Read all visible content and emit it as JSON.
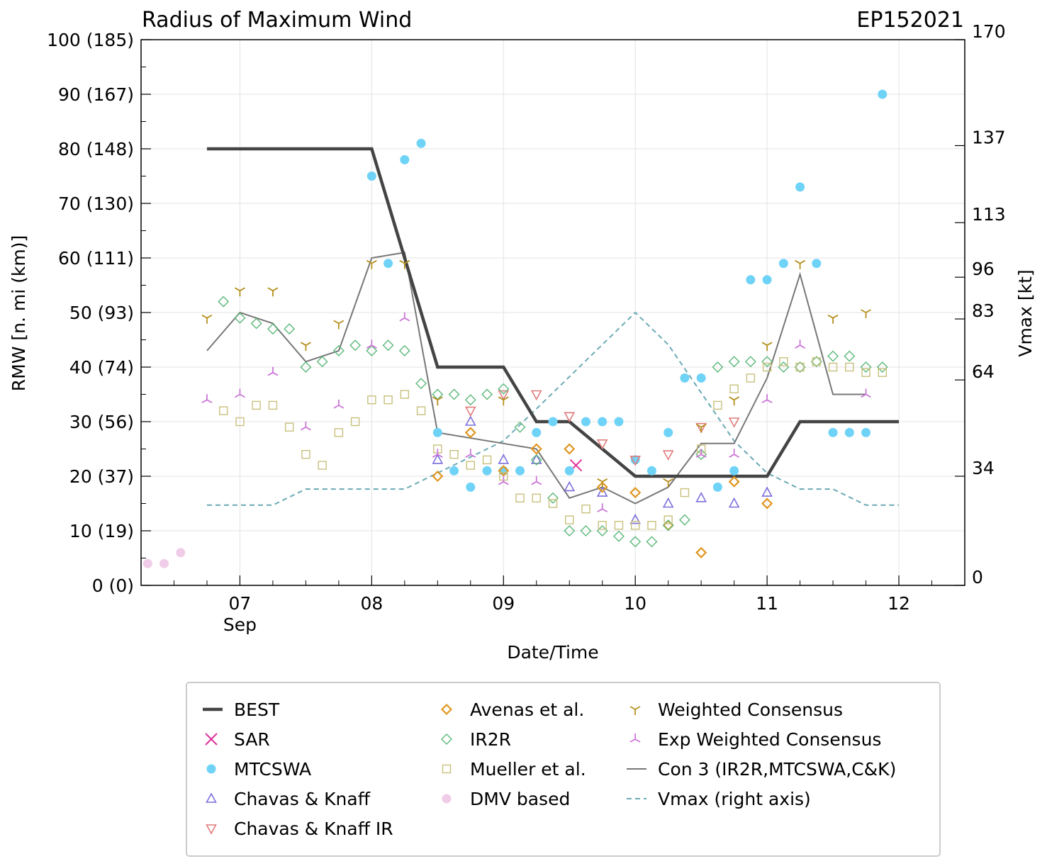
{
  "chart_data": {
    "type": "scatter",
    "title": "Radius of Maximum Wind",
    "storm_id": "EP152021",
    "xlabel": "Date/Time",
    "ylabel": "RMW [n. mi (km)]",
    "ylabel_right": "Vmax [kt]",
    "xlim": [
      6.25,
      12.5
    ],
    "ylim": [
      0,
      100
    ],
    "ylim_right": [
      0,
      170
    ],
    "x_ticks": [
      {
        "value": 7,
        "label": "07",
        "sublabel": "Sep"
      },
      {
        "value": 8,
        "label": "08",
        "sublabel": ""
      },
      {
        "value": 9,
        "label": "09",
        "sublabel": ""
      },
      {
        "value": 10,
        "label": "10",
        "sublabel": ""
      },
      {
        "value": 11,
        "label": "11",
        "sublabel": ""
      },
      {
        "value": 12,
        "label": "12",
        "sublabel": ""
      }
    ],
    "y_ticks": [
      {
        "value": 0,
        "label": "0 (0)"
      },
      {
        "value": 10,
        "label": "10 (19)"
      },
      {
        "value": 20,
        "label": "20 (37)"
      },
      {
        "value": 30,
        "label": "30 (56)"
      },
      {
        "value": 40,
        "label": "40 (74)"
      },
      {
        "value": 50,
        "label": "50 (93)"
      },
      {
        "value": 60,
        "label": "60 (111)"
      },
      {
        "value": 70,
        "label": "70 (130)"
      },
      {
        "value": 80,
        "label": "80 (148)"
      },
      {
        "value": 90,
        "label": "90 (167)"
      },
      {
        "value": 100,
        "label": "100 (185)"
      }
    ],
    "y_right_ticks": [
      {
        "value": 0,
        "label": "0"
      },
      {
        "value": 34,
        "label": "34"
      },
      {
        "value": 64,
        "label": "64"
      },
      {
        "value": 83,
        "label": "83"
      },
      {
        "value": 96,
        "label": "96"
      },
      {
        "value": 113,
        "label": "113"
      },
      {
        "value": 137,
        "label": "137"
      },
      {
        "value": 170,
        "label": "170"
      }
    ],
    "legend_placement": "below plot",
    "series": [
      {
        "name": "BEST",
        "kind": "line",
        "color": "#444444",
        "x": [
          6.75,
          8.0,
          8.5,
          9.0,
          9.25,
          9.5,
          10.0,
          11.0,
          11.25,
          12.0
        ],
        "y": [
          80,
          80,
          40,
          40,
          30,
          30,
          20,
          20,
          30,
          30
        ]
      },
      {
        "name": "SAR",
        "kind": "x",
        "color": "#e0309a",
        "x": [
          9.55
        ],
        "y": [
          22
        ]
      },
      {
        "name": "MTCSWA",
        "kind": "circle",
        "color": "#6fd3f7",
        "x": [
          8.0,
          8.125,
          8.25,
          8.375,
          8.5,
          8.625,
          8.75,
          8.875,
          9.0,
          9.125,
          9.25,
          9.375,
          9.5,
          9.625,
          9.75,
          9.875,
          10.0,
          10.125,
          10.25,
          10.375,
          10.5,
          10.625,
          10.75,
          10.875,
          11.0,
          11.125,
          11.25,
          11.375,
          11.5,
          11.625,
          11.75,
          11.875
        ],
        "y": [
          75,
          59,
          78,
          81,
          28,
          21,
          18,
          21,
          21,
          21,
          28,
          30,
          21,
          30,
          30,
          30,
          23,
          21,
          28,
          38,
          38,
          18,
          21,
          56,
          56,
          59,
          73,
          59,
          28,
          28,
          28,
          90
        ]
      },
      {
        "name": "Chavas & Knaff",
        "kind": "triangle-up",
        "color": "#7b6fdc",
        "x": [
          8.5,
          8.75,
          9.0,
          9.25,
          9.5,
          9.75,
          10.0,
          10.25,
          10.5,
          10.75,
          11.0
        ],
        "y": [
          23,
          30,
          23,
          23,
          18,
          17,
          12,
          15,
          16,
          15,
          17
        ]
      },
      {
        "name": "Chavas & Knaff IR",
        "kind": "triangle-down",
        "color": "#e07b7b",
        "x": [
          8.75,
          9.0,
          9.25,
          9.5,
          9.75,
          10.0,
          10.25,
          10.5,
          10.75
        ],
        "y": [
          32,
          35,
          35,
          31,
          26,
          23,
          24,
          29,
          30
        ]
      },
      {
        "name": "Avenas et al.",
        "kind": "diamond",
        "color": "#e0961f",
        "x": [
          8.5,
          8.75,
          9.0,
          9.25,
          9.5,
          9.75,
          10.0,
          10.25,
          10.5,
          10.75,
          11.0
        ],
        "y": [
          20,
          28,
          21,
          25,
          25,
          18,
          17,
          11,
          6,
          19,
          15
        ]
      },
      {
        "name": "IR2R",
        "kind": "diamond-open",
        "color": "#5db87a",
        "x": [
          6.875,
          7.0,
          7.125,
          7.25,
          7.375,
          7.5,
          7.625,
          7.75,
          7.875,
          8.0,
          8.125,
          8.25,
          8.375,
          8.5,
          8.625,
          8.75,
          8.875,
          9.0,
          9.125,
          9.25,
          9.375,
          9.5,
          9.625,
          9.75,
          9.875,
          10.0,
          10.125,
          10.25,
          10.375,
          10.5,
          10.625,
          10.75,
          10.875,
          11.0,
          11.125,
          11.25,
          11.375,
          11.5,
          11.625,
          11.75,
          11.875
        ],
        "y": [
          52,
          49,
          48,
          47,
          47,
          40,
          41,
          43,
          44,
          43,
          44,
          43,
          37,
          35,
          35,
          34,
          35,
          36,
          29,
          23,
          16,
          10,
          10,
          10,
          9,
          8,
          8,
          11,
          12,
          24,
          40,
          41,
          41,
          41,
          40,
          40,
          41,
          42,
          42,
          40,
          40
        ]
      },
      {
        "name": "Mueller et al.",
        "kind": "square-open",
        "color": "#c8c07c",
        "x": [
          6.875,
          7.0,
          7.125,
          7.25,
          7.375,
          7.5,
          7.625,
          7.75,
          7.875,
          8.0,
          8.125,
          8.25,
          8.375,
          8.5,
          8.625,
          8.75,
          8.875,
          9.0,
          9.125,
          9.25,
          9.375,
          9.5,
          9.625,
          9.75,
          9.875,
          10.0,
          10.125,
          10.25,
          10.375,
          10.5,
          10.625,
          10.75,
          10.875,
          11.0,
          11.125,
          11.25,
          11.375,
          11.5,
          11.625,
          11.75,
          11.875
        ],
        "y": [
          32,
          30,
          33,
          33,
          29,
          24,
          22,
          28,
          30,
          34,
          34,
          35,
          32,
          25,
          24,
          22,
          23,
          20,
          16,
          16,
          15,
          12,
          14,
          11,
          11,
          11,
          11,
          12,
          17,
          25,
          33,
          36,
          38,
          40,
          41,
          40,
          41,
          40,
          40,
          39,
          39
        ]
      },
      {
        "name": "DMV based",
        "kind": "circle",
        "color": "#f0cce8",
        "x": [
          6.3,
          6.425,
          6.55
        ],
        "y": [
          4,
          4,
          6
        ]
      },
      {
        "name": "Weighted Consensus",
        "kind": "tri-down",
        "color": "#b5901f",
        "x": [
          6.75,
          7.0,
          7.25,
          7.5,
          7.75,
          8.0,
          8.25,
          8.5,
          9.0,
          9.75,
          10.25,
          10.5,
          10.75,
          11.0,
          11.25,
          11.5,
          11.75
        ],
        "y": [
          49,
          54,
          54,
          44,
          48,
          59,
          59,
          34,
          34,
          19,
          19,
          29,
          34,
          44,
          59,
          49,
          50
        ]
      },
      {
        "name": "Exp Weighted Consensus",
        "kind": "tri-up",
        "color": "#cc77d8",
        "x": [
          6.75,
          7.0,
          7.25,
          7.5,
          7.75,
          8.0,
          8.25,
          8.5,
          8.75,
          9.0,
          9.25,
          9.75,
          10.5,
          10.75,
          11.0,
          11.25,
          11.75
        ],
        "y": [
          34,
          35,
          39,
          29,
          33,
          44,
          49,
          24,
          24,
          19,
          19,
          14,
          24,
          24,
          34,
          44,
          35
        ]
      },
      {
        "name": "Con 3 (IR2R,MTCSWA,C&K)",
        "kind": "line",
        "color": "#777777",
        "x": [
          6.75,
          7.0,
          7.25,
          7.5,
          7.75,
          8.0,
          8.25,
          8.5,
          9.0,
          9.25,
          9.5,
          9.75,
          10.0,
          10.25,
          10.5,
          10.75,
          11.0,
          11.25,
          11.5,
          11.75
        ],
        "y": [
          43,
          50,
          48,
          41,
          43,
          60,
          61,
          28,
          26,
          25,
          16,
          18,
          15,
          18,
          26,
          26,
          38,
          57,
          35,
          35
        ]
      },
      {
        "name": "Vmax (right axis)",
        "kind": "dashed",
        "color": "#6aaab5",
        "axis": "right",
        "x": [
          6.75,
          7.0,
          7.25,
          7.5,
          7.75,
          8.0,
          8.25,
          8.5,
          8.75,
          9.0,
          9.25,
          9.5,
          9.75,
          10.0,
          10.25,
          10.5,
          10.75,
          11.0,
          11.25,
          11.5,
          11.75,
          12.0
        ],
        "y": [
          25,
          25,
          25,
          30,
          30,
          30,
          30,
          35,
          40,
          45,
          55,
          65,
          75,
          85,
          75,
          60,
          45,
          35,
          30,
          30,
          25,
          25
        ]
      }
    ]
  }
}
